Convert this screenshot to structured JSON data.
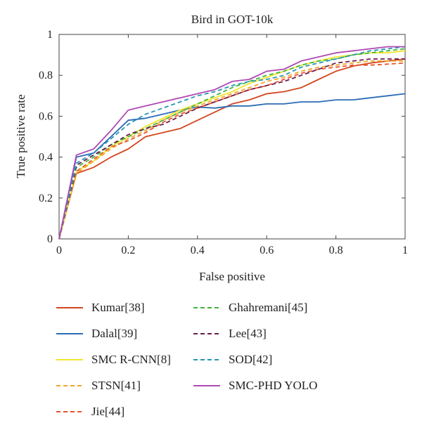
{
  "chart_data": {
    "type": "line",
    "title": "Bird in GOT-10k",
    "xlabel": "False positive",
    "ylabel": "True positive rate",
    "xlim": [
      0,
      1
    ],
    "ylim": [
      0,
      1
    ],
    "xticks": [
      "0",
      "0.2",
      "0.4",
      "0.6",
      "0.8",
      "1"
    ],
    "yticks": [
      "0",
      "0.2",
      "0.4",
      "0.6",
      "0.8",
      "1"
    ],
    "grid": false,
    "legend_placement": "bottom",
    "series": [
      {
        "name": "Kumar[38]",
        "color": "#d4461e",
        "dash": "solid",
        "x": [
          0,
          0.05,
          0.1,
          0.15,
          0.2,
          0.25,
          0.3,
          0.35,
          0.4,
          0.45,
          0.5,
          0.55,
          0.6,
          0.65,
          0.7,
          0.75,
          0.8,
          0.85,
          0.9,
          0.95,
          1.0
        ],
        "y": [
          0,
          0.32,
          0.35,
          0.4,
          0.44,
          0.5,
          0.52,
          0.54,
          0.58,
          0.62,
          0.66,
          0.68,
          0.71,
          0.72,
          0.74,
          0.78,
          0.82,
          0.845,
          0.86,
          0.87,
          0.88
        ]
      },
      {
        "name": "Dalal[39]",
        "color": "#2b6cb5",
        "dash": "solid",
        "x": [
          0,
          0.05,
          0.1,
          0.15,
          0.2,
          0.25,
          0.3,
          0.35,
          0.4,
          0.45,
          0.5,
          0.55,
          0.6,
          0.65,
          0.7,
          0.75,
          0.8,
          0.85,
          0.9,
          0.95,
          1.0
        ],
        "y": [
          0,
          0.4,
          0.42,
          0.5,
          0.58,
          0.59,
          0.61,
          0.63,
          0.645,
          0.64,
          0.65,
          0.65,
          0.66,
          0.66,
          0.67,
          0.67,
          0.68,
          0.68,
          0.69,
          0.7,
          0.71
        ]
      },
      {
        "name": "SMC R-CNN[8]",
        "color": "#efe62c",
        "dash": "solid",
        "x": [
          0,
          0.05,
          0.1,
          0.15,
          0.2,
          0.25,
          0.3,
          0.35,
          0.4,
          0.45,
          0.5,
          0.55,
          0.6,
          0.65,
          0.7,
          0.75,
          0.8,
          0.85,
          0.9,
          0.95,
          1.0
        ],
        "y": [
          0,
          0.33,
          0.38,
          0.45,
          0.5,
          0.55,
          0.59,
          0.63,
          0.66,
          0.69,
          0.72,
          0.76,
          0.79,
          0.82,
          0.85,
          0.87,
          0.89,
          0.9,
          0.91,
          0.91,
          0.92
        ]
      },
      {
        "name": "STSN[41]",
        "color": "#f0a62a",
        "dash": "dash",
        "x": [
          0,
          0.05,
          0.1,
          0.15,
          0.2,
          0.25,
          0.3,
          0.35,
          0.4,
          0.45,
          0.5,
          0.55,
          0.6,
          0.65,
          0.7,
          0.75,
          0.8,
          0.85,
          0.9,
          0.95,
          1.0
        ],
        "y": [
          0,
          0.32,
          0.38,
          0.44,
          0.49,
          0.53,
          0.58,
          0.62,
          0.65,
          0.68,
          0.71,
          0.74,
          0.77,
          0.79,
          0.82,
          0.84,
          0.85,
          0.86,
          0.87,
          0.87,
          0.87
        ]
      },
      {
        "name": "Jie[44]",
        "color": "#e8542a",
        "dash": "dash",
        "x": [
          0,
          0.05,
          0.1,
          0.15,
          0.2,
          0.25,
          0.3,
          0.35,
          0.4,
          0.45,
          0.5,
          0.55,
          0.6,
          0.65,
          0.7,
          0.75,
          0.8,
          0.85,
          0.9,
          0.95,
          1.0
        ],
        "y": [
          0,
          0.33,
          0.39,
          0.45,
          0.48,
          0.52,
          0.57,
          0.61,
          0.64,
          0.67,
          0.7,
          0.73,
          0.75,
          0.78,
          0.81,
          0.83,
          0.84,
          0.85,
          0.85,
          0.855,
          0.86
        ]
      },
      {
        "name": "Ghahremani[45]",
        "color": "#3fb63a",
        "dash": "dash",
        "x": [
          0,
          0.05,
          0.1,
          0.15,
          0.2,
          0.25,
          0.3,
          0.35,
          0.4,
          0.45,
          0.5,
          0.55,
          0.6,
          0.65,
          0.7,
          0.75,
          0.8,
          0.85,
          0.9,
          0.95,
          1.0
        ],
        "y": [
          0,
          0.35,
          0.4,
          0.46,
          0.5,
          0.54,
          0.58,
          0.62,
          0.66,
          0.7,
          0.74,
          0.77,
          0.8,
          0.82,
          0.85,
          0.87,
          0.88,
          0.9,
          0.91,
          0.92,
          0.93
        ]
      },
      {
        "name": "Lee[43]",
        "color": "#6b1d4e",
        "dash": "dash",
        "x": [
          0,
          0.05,
          0.1,
          0.15,
          0.2,
          0.25,
          0.3,
          0.35,
          0.4,
          0.45,
          0.5,
          0.55,
          0.6,
          0.65,
          0.7,
          0.75,
          0.8,
          0.85,
          0.9,
          0.95,
          1.0
        ],
        "y": [
          0,
          0.36,
          0.41,
          0.46,
          0.51,
          0.54,
          0.56,
          0.6,
          0.64,
          0.67,
          0.7,
          0.73,
          0.75,
          0.77,
          0.8,
          0.83,
          0.86,
          0.87,
          0.88,
          0.88,
          0.88
        ]
      },
      {
        "name": "SOD[42]",
        "color": "#2896b6",
        "dash": "dash",
        "x": [
          0,
          0.05,
          0.1,
          0.15,
          0.2,
          0.25,
          0.3,
          0.35,
          0.4,
          0.45,
          0.5,
          0.55,
          0.6,
          0.65,
          0.7,
          0.75,
          0.8,
          0.85,
          0.9,
          0.95,
          1.0
        ],
        "y": [
          0,
          0.37,
          0.42,
          0.49,
          0.56,
          0.61,
          0.64,
          0.67,
          0.7,
          0.72,
          0.75,
          0.77,
          0.78,
          0.8,
          0.84,
          0.86,
          0.88,
          0.9,
          0.92,
          0.93,
          0.94
        ]
      },
      {
        "name": "SMC-PHD YOLO",
        "color": "#b048b4",
        "dash": "solid",
        "x": [
          0,
          0.05,
          0.1,
          0.15,
          0.2,
          0.25,
          0.3,
          0.35,
          0.4,
          0.45,
          0.5,
          0.55,
          0.6,
          0.65,
          0.7,
          0.75,
          0.8,
          0.85,
          0.9,
          0.95,
          1.0
        ],
        "y": [
          0,
          0.41,
          0.44,
          0.53,
          0.63,
          0.65,
          0.67,
          0.69,
          0.71,
          0.73,
          0.77,
          0.78,
          0.82,
          0.83,
          0.87,
          0.89,
          0.91,
          0.92,
          0.93,
          0.94,
          0.94
        ]
      }
    ]
  }
}
